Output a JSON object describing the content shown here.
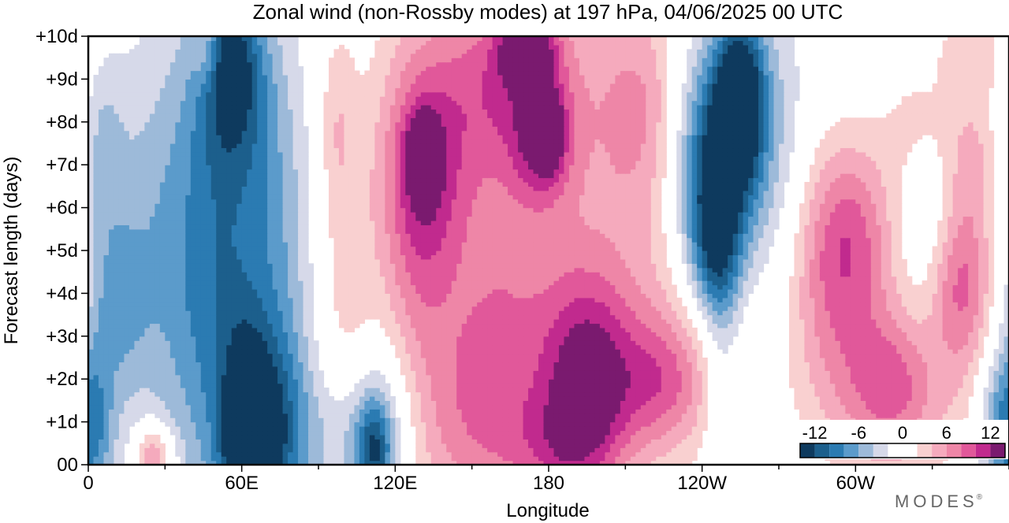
{
  "chart_data": {
    "type": "heatmap",
    "title": "Zonal wind (non-Rossby modes) at 197 hPa,  04/06/2025  00 UTC",
    "xlabel": "Longitude",
    "ylabel": "Forecast length (days)",
    "x_ticks": [
      "0",
      "60E",
      "120E",
      "180",
      "120W",
      "60W"
    ],
    "x_tick_values": [
      0,
      60,
      120,
      180,
      240,
      300
    ],
    "xlim": [
      0,
      360
    ],
    "y_ticks": [
      "00",
      "+1d",
      "+2d",
      "+3d",
      "+4d",
      "+5d",
      "+6d",
      "+7d",
      "+8d",
      "+9d",
      "+10d"
    ],
    "y_tick_values": [
      0,
      1,
      2,
      3,
      4,
      5,
      6,
      7,
      8,
      9,
      10
    ],
    "ylim": [
      0,
      10
    ],
    "grid": false,
    "units": "m/s",
    "colorbar": {
      "labels": [
        "-12",
        "-6",
        "0",
        "6",
        "12"
      ],
      "label_values": [
        -12,
        -6,
        0,
        6,
        12
      ],
      "range": [
        -14,
        14
      ],
      "bins": [
        {
          "from": -14,
          "to": -12,
          "color": "#0e3a5e"
        },
        {
          "from": -12,
          "to": -10,
          "color": "#1c5f8c"
        },
        {
          "from": -10,
          "to": -8,
          "color": "#2b7bb2"
        },
        {
          "from": -8,
          "to": -6,
          "color": "#5b9bcb"
        },
        {
          "from": -6,
          "to": -4,
          "color": "#9dbad9"
        },
        {
          "from": -4,
          "to": -2,
          "color": "#d6d9e9"
        },
        {
          "from": -2,
          "to": 2,
          "color": "#ffffff"
        },
        {
          "from": 2,
          "to": 4,
          "color": "#f9d0d0"
        },
        {
          "from": 4,
          "to": 6,
          "color": "#f5aabd"
        },
        {
          "from": 6,
          "to": 8,
          "color": "#ee86a7"
        },
        {
          "from": 8,
          "to": 10,
          "color": "#e1589a"
        },
        {
          "from": 10,
          "to": 12,
          "color": "#c12a8e"
        },
        {
          "from": 12,
          "to": 14,
          "color": "#7a1a6f"
        }
      ]
    },
    "features": [
      {
        "lon": 30,
        "day": 5.5,
        "slon": 14,
        "sday": 3.5,
        "value": -4.5
      },
      {
        "lon": 8,
        "day": 4.0,
        "slon": 10,
        "sday": 3.0,
        "value": -3.0
      },
      {
        "lon": 12,
        "day": 3.8,
        "slon": 8,
        "sday": 1.2,
        "value": -3.0
      },
      {
        "lon": 2,
        "day": 1.0,
        "slon": 6,
        "sday": 1.5,
        "value": -4.5
      },
      {
        "lon": 5,
        "day": 7.5,
        "slon": 6,
        "sday": 1.5,
        "value": -3.0
      },
      {
        "lon": 60,
        "day": 2.5,
        "slon": 18,
        "sday": 4.0,
        "value": -6.5
      },
      {
        "lon": 62,
        "day": 1.0,
        "slon": 7,
        "sday": 1.5,
        "value": -7.5
      },
      {
        "lon": 64,
        "day": 0.3,
        "slon": 6,
        "sday": 0.9,
        "value": -12.0
      },
      {
        "lon": 75,
        "day": 0.8,
        "slon": 9,
        "sday": 1.6,
        "value": -6.0
      },
      {
        "lon": 52,
        "day": 6.0,
        "slon": 12,
        "sday": 4.0,
        "value": -3.5
      },
      {
        "lon": 57,
        "day": 9.0,
        "slon": 10,
        "sday": 1.6,
        "value": -8.0
      },
      {
        "lon": 55,
        "day": 9.5,
        "slon": 6,
        "sday": 0.8,
        "value": -4.0
      },
      {
        "lon": 75,
        "day": 6.5,
        "slon": 10,
        "sday": 3.0,
        "value": -2.5
      },
      {
        "lon": 115,
        "day": 1.0,
        "slon": 12,
        "sday": 1.5,
        "value": -5.5
      },
      {
        "lon": 112,
        "day": 0.3,
        "slon": 5,
        "sday": 0.9,
        "value": -9.0
      },
      {
        "lon": 98,
        "day": 0.4,
        "slon": 10,
        "sday": 1.2,
        "value": -3.0
      },
      {
        "lon": 250,
        "day": 7.6,
        "slon": 12,
        "sday": 2.0,
        "value": -9.0
      },
      {
        "lon": 255,
        "day": 8.6,
        "slon": 6,
        "sday": 1.2,
        "value": -12.0
      },
      {
        "lon": 243,
        "day": 6.5,
        "slon": 10,
        "sday": 1.8,
        "value": -6.5
      },
      {
        "lon": 245,
        "day": 5.0,
        "slon": 7,
        "sday": 1.2,
        "value": -7.0
      },
      {
        "lon": 248,
        "day": 2.0,
        "slon": 5,
        "sday": 3.0,
        "value": -3.0
      },
      {
        "lon": 270,
        "day": 7.5,
        "slon": 10,
        "sday": 3.5,
        "value": -2.5
      },
      {
        "lon": 356,
        "day": 0.8,
        "slon": 7,
        "sday": 1.3,
        "value": -6.0
      },
      {
        "lon": 330,
        "day": 5.5,
        "slon": 10,
        "sday": 3.0,
        "value": -3.0
      },
      {
        "lon": 132,
        "day": 6.8,
        "slon": 12,
        "sday": 1.8,
        "value": 7.0
      },
      {
        "lon": 131,
        "day": 7.2,
        "slon": 4,
        "sday": 0.6,
        "value": 9.0
      },
      {
        "lon": 128,
        "day": 5.5,
        "slon": 10,
        "sday": 3.0,
        "value": 3.5
      },
      {
        "lon": 165,
        "day": 9.0,
        "slon": 20,
        "sday": 1.5,
        "value": 6.5
      },
      {
        "lon": 172,
        "day": 9.8,
        "slon": 8,
        "sday": 0.6,
        "value": 9.0
      },
      {
        "lon": 178,
        "day": 7.6,
        "slon": 8,
        "sday": 1.0,
        "value": 7.5
      },
      {
        "lon": 180,
        "day": 7.8,
        "slon": 3,
        "sday": 0.5,
        "value": 10.0
      },
      {
        "lon": 155,
        "day": 7.5,
        "slon": 30,
        "sday": 3.5,
        "value": 3.0
      },
      {
        "lon": 215,
        "day": 8.5,
        "slon": 12,
        "sday": 1.8,
        "value": 5.0
      },
      {
        "lon": 200,
        "day": 5.5,
        "slon": 30,
        "sday": 2.5,
        "value": 2.5
      },
      {
        "lon": 100,
        "day": 3.5,
        "slon": 8,
        "sday": 3.0,
        "value": 3.0
      },
      {
        "lon": 145,
        "day": 1.0,
        "slon": 20,
        "sday": 2.0,
        "value": 5.0
      },
      {
        "lon": 190,
        "day": 1.5,
        "slon": 12,
        "sday": 2.0,
        "value": 5.5
      },
      {
        "lon": 200,
        "day": 1.8,
        "slon": 12,
        "sday": 1.6,
        "value": 6.0
      },
      {
        "lon": 225,
        "day": 1.9,
        "slon": 12,
        "sday": 1.1,
        "value": 6.0
      },
      {
        "lon": 200,
        "day": 2.5,
        "slon": 45,
        "sday": 2.0,
        "value": 3.0
      },
      {
        "lon": 182,
        "day": 0.4,
        "slon": 14,
        "sday": 0.9,
        "value": 4.0
      },
      {
        "lon": 160,
        "day": 3.0,
        "slon": 12,
        "sday": 3.0,
        "value": 2.5
      },
      {
        "lon": 315,
        "day": 1.8,
        "slon": 14,
        "sday": 1.2,
        "value": 6.5
      },
      {
        "lon": 315,
        "day": 2.2,
        "slon": 25,
        "sday": 2.0,
        "value": 3.0
      },
      {
        "lon": 290,
        "day": 4.5,
        "slon": 12,
        "sday": 2.0,
        "value": 5.0
      },
      {
        "lon": 300,
        "day": 5.5,
        "slon": 12,
        "sday": 1.5,
        "value": 5.5
      },
      {
        "lon": 325,
        "day": 8.0,
        "slon": 10,
        "sday": 1.2,
        "value": 3.5
      },
      {
        "lon": 340,
        "day": 4.2,
        "slon": 8,
        "sday": 1.2,
        "value": 6.0
      },
      {
        "lon": 345,
        "day": 5.0,
        "slon": 10,
        "sday": 3.0,
        "value": 3.0
      },
      {
        "lon": 345,
        "day": 7.0,
        "slon": 8,
        "sday": 1.2,
        "value": 3.0
      },
      {
        "lon": 345,
        "day": 9.7,
        "slon": 10,
        "sday": 0.8,
        "value": 3.0
      },
      {
        "lon": 25,
        "day": 0.3,
        "slon": 5,
        "sday": 0.5,
        "value": 5.0
      },
      {
        "lon": 27,
        "day": 0.1,
        "slon": 6,
        "sday": 0.5,
        "value": 3.0
      },
      {
        "lon": 47,
        "day": 9.6,
        "slon": 4,
        "sday": 0.6,
        "value": 4.0
      },
      {
        "lon": 97,
        "day": 8.0,
        "slon": 5,
        "sday": 1.5,
        "value": 3.0
      }
    ]
  },
  "brand": "MODES",
  "brand_mark": "®"
}
